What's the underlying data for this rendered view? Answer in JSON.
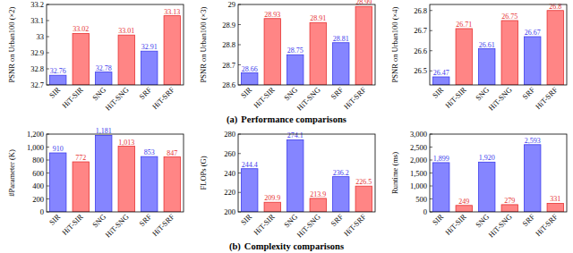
{
  "chart_data": [
    {
      "type": "bar",
      "y_label": "PSNR on Urban100 (×2)",
      "categories": [
        "SIR",
        "HiT-SIR",
        "SNG",
        "HiT-SNG",
        "SRF",
        "HiT-SRF"
      ],
      "values": [
        32.76,
        33.02,
        32.78,
        33.01,
        32.91,
        33.13
      ],
      "colors": [
        "#8585ff",
        "#ff8585",
        "#8585ff",
        "#ff8585",
        "#8585ff",
        "#ff8585"
      ],
      "ylim": [
        32.7,
        33.2
      ],
      "yticks": [
        32.7,
        32.8,
        32.9,
        33,
        33.1,
        33.2
      ],
      "data_labels": true,
      "grid": false
    },
    {
      "type": "bar",
      "y_label": "PSNR on Urban100 (×3)",
      "categories": [
        "SIR",
        "HiT-SIR",
        "SNG",
        "HiT-SNG",
        "SRF",
        "HiT-SRF"
      ],
      "values": [
        28.66,
        28.93,
        28.75,
        28.91,
        28.81,
        28.99
      ],
      "colors": [
        "#8585ff",
        "#ff8585",
        "#8585ff",
        "#ff8585",
        "#8585ff",
        "#ff8585"
      ],
      "ylim": [
        28.6,
        29.0
      ],
      "yticks": [
        28.6,
        28.7,
        28.8,
        28.9,
        29
      ],
      "data_labels": true,
      "grid": false
    },
    {
      "type": "bar",
      "y_label": "PSNR on Urban100 (×4)",
      "categories": [
        "SIR",
        "HiT-SIR",
        "SNG",
        "HiT-SNG",
        "SRF",
        "HiT-SRF"
      ],
      "values": [
        26.47,
        26.71,
        26.61,
        26.75,
        26.67,
        26.8
      ],
      "colors": [
        "#8585ff",
        "#ff8585",
        "#8585ff",
        "#ff8585",
        "#8585ff",
        "#ff8585"
      ],
      "ylim": [
        26.43,
        26.83
      ],
      "yticks": [
        26.5,
        26.6,
        26.7,
        26.8
      ],
      "data_labels": true,
      "grid": false
    },
    {
      "type": "bar",
      "y_label": "#Parameter (K)",
      "categories": [
        "SIR",
        "HiT-SIR",
        "SNG",
        "HiT-SNG",
        "SRF",
        "HiT-SRF"
      ],
      "values": [
        910,
        772,
        1181,
        1013,
        853,
        847
      ],
      "value_labels": [
        "910",
        "772",
        "1,181",
        "1,013",
        "853",
        "847"
      ],
      "colors": [
        "#8585ff",
        "#ff8585",
        "#8585ff",
        "#ff8585",
        "#8585ff",
        "#ff8585"
      ],
      "ylim": [
        0,
        1200
      ],
      "yticks": [
        0,
        200,
        400,
        600,
        800,
        {
          "value": 1000,
          "label": "1,000"
        },
        {
          "value": 1200,
          "label": "1,200"
        }
      ],
      "data_labels": true,
      "grid": false
    },
    {
      "type": "bar",
      "y_label": "FLOPs (G)",
      "categories": [
        "SIR",
        "HiT-SIR",
        "SNG",
        "HiT-SNG",
        "SRF",
        "HiT-SRF"
      ],
      "values": [
        244.4,
        209.9,
        274.1,
        213.9,
        236.2,
        226.5
      ],
      "colors": [
        "#8585ff",
        "#ff8585",
        "#8585ff",
        "#ff8585",
        "#8585ff",
        "#ff8585"
      ],
      "ylim": [
        200,
        280
      ],
      "yticks": [
        200,
        220,
        240,
        260,
        280
      ],
      "data_labels": true,
      "grid": false
    },
    {
      "type": "bar",
      "y_label": "Runtime (ms)",
      "categories": [
        "SIR",
        "HiT-SIR",
        "SNG",
        "HiT-SNG",
        "SRF",
        "HiT-SRF"
      ],
      "values": [
        1899,
        249,
        1920,
        279,
        2593,
        331
      ],
      "value_labels": [
        "1,899",
        "249",
        "1,920",
        "279",
        "2,593",
        "331"
      ],
      "colors": [
        "#8585ff",
        "#ff8585",
        "#8585ff",
        "#ff8585",
        "#8585ff",
        "#ff8585"
      ],
      "ylim": [
        0,
        3000
      ],
      "yticks": [
        0,
        500,
        {
          "value": 1000,
          "label": "1,000"
        },
        {
          "value": 1500,
          "label": "1,500"
        },
        {
          "value": 2000,
          "label": "2,000"
        },
        {
          "value": 2500,
          "label": "2,500"
        },
        {
          "value": 3000,
          "label": "3,000"
        }
      ],
      "data_labels": true,
      "grid": false
    }
  ],
  "captions": [
    {
      "tag": "(a)",
      "text": "Performance comparisons"
    },
    {
      "tag": "(b)",
      "text": "Complexity comparisons"
    }
  ]
}
